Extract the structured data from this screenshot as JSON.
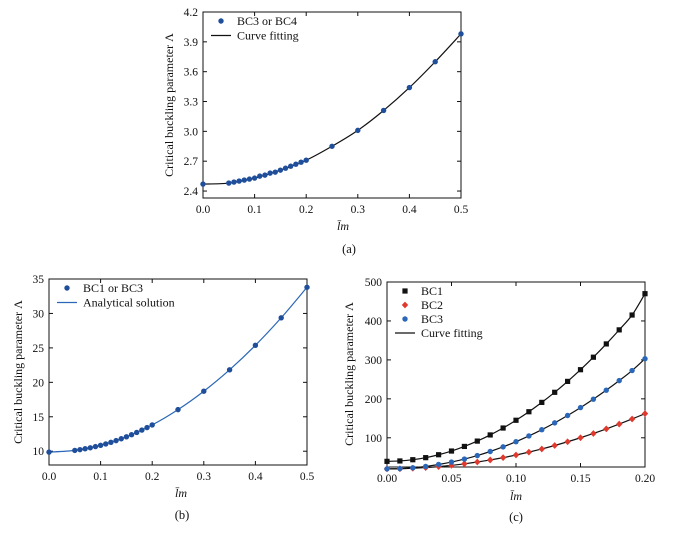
{
  "chart_data": [
    {
      "id": "a",
      "type": "scatter",
      "caption": "(a)",
      "xlabel": "l̄m",
      "ylabel": "Critical buckling parameter Λ",
      "xlim": [
        0.0,
        0.5
      ],
      "ylim": [
        2.33,
        4.2
      ],
      "xticks": [
        0.0,
        0.1,
        0.2,
        0.3,
        0.4,
        0.5
      ],
      "yticks": [
        2.4,
        2.7,
        3.0,
        3.3,
        3.6,
        3.9,
        4.2
      ],
      "tick_decimals_x": 1,
      "tick_decimals_y": 1,
      "legend": {
        "position": "top-left",
        "entries": [
          "BC3 or BC4",
          "Curve fitting"
        ]
      },
      "series": [
        {
          "name": "BC3 or BC4",
          "marker": "circle",
          "color": "#1f4e9a",
          "x": [
            0,
            0.05,
            0.06,
            0.07,
            0.08,
            0.09,
            0.1,
            0.11,
            0.12,
            0.13,
            0.14,
            0.15,
            0.16,
            0.17,
            0.18,
            0.19,
            0.2,
            0.25,
            0.3,
            0.35,
            0.4,
            0.45,
            0.5
          ],
          "y": [
            2.47,
            2.48,
            2.49,
            2.5,
            2.51,
            2.52,
            2.53,
            2.55,
            2.56,
            2.58,
            2.59,
            2.61,
            2.63,
            2.65,
            2.67,
            2.69,
            2.71,
            2.85,
            3.01,
            3.21,
            3.44,
            3.7,
            3.98
          ]
        },
        {
          "name": "Curve fitting",
          "kind": "line",
          "color": "#111111",
          "x": [
            0,
            0.05,
            0.1,
            0.15,
            0.2,
            0.25,
            0.3,
            0.35,
            0.4,
            0.45,
            0.5
          ],
          "y": [
            2.47,
            2.48,
            2.53,
            2.61,
            2.71,
            2.85,
            3.01,
            3.21,
            3.44,
            3.7,
            3.98
          ]
        }
      ]
    },
    {
      "id": "b",
      "type": "scatter",
      "caption": "(b)",
      "xlabel": "l̄m",
      "ylabel": "Critical buckling parameter Λ",
      "xlim": [
        0.0,
        0.5
      ],
      "ylim": [
        8,
        35
      ],
      "xticks": [
        0.0,
        0.1,
        0.2,
        0.3,
        0.4,
        0.5
      ],
      "yticks": [
        10,
        15,
        20,
        25,
        30,
        35
      ],
      "tick_decimals_x": 1,
      "tick_decimals_y": 0,
      "legend": {
        "position": "top-left",
        "entries": [
          "BC1 or BC3",
          "Analytical solution"
        ]
      },
      "series": [
        {
          "name": "BC1 or BC3",
          "marker": "circle",
          "color": "#1f4e9a",
          "x": [
            0,
            0.05,
            0.06,
            0.07,
            0.08,
            0.09,
            0.1,
            0.11,
            0.12,
            0.13,
            0.14,
            0.15,
            0.16,
            0.17,
            0.18,
            0.19,
            0.2,
            0.25,
            0.3,
            0.35,
            0.4,
            0.45,
            0.5
          ],
          "y": [
            9.87,
            10.12,
            10.23,
            10.36,
            10.5,
            10.67,
            10.86,
            11.06,
            11.29,
            11.54,
            11.81,
            12.09,
            12.4,
            12.73,
            13.07,
            13.43,
            13.82,
            16.04,
            18.71,
            21.82,
            25.37,
            29.37,
            33.8
          ]
        },
        {
          "name": "Analytical solution",
          "kind": "line",
          "color": "#2b67b8",
          "x": [
            0,
            0.05,
            0.1,
            0.15,
            0.2,
            0.25,
            0.3,
            0.35,
            0.4,
            0.45,
            0.5
          ],
          "y": [
            9.87,
            10.12,
            10.86,
            12.09,
            13.82,
            16.04,
            18.71,
            21.82,
            25.37,
            29.37,
            33.8
          ]
        }
      ]
    },
    {
      "id": "c",
      "type": "scatter",
      "caption": "(c)",
      "xlabel": "l̄m",
      "ylabel": "Critical buckling parameter Λ",
      "xlim": [
        0.0,
        0.2
      ],
      "ylim": [
        25,
        500
      ],
      "xticks": [
        0.0,
        0.05,
        0.1,
        0.15,
        0.2
      ],
      "yticks": [
        100,
        200,
        300,
        400,
        500
      ],
      "tick_decimals_x": 2,
      "tick_decimals_y": 0,
      "legend": {
        "position": "top-left",
        "entries": [
          "BC1",
          "BC2",
          "BC3",
          "Curve fitting"
        ]
      },
      "series": [
        {
          "name": "BC1",
          "marker": "square",
          "color": "#111111",
          "x": [
            0.0,
            0.01,
            0.02,
            0.03,
            0.04,
            0.05,
            0.06,
            0.07,
            0.08,
            0.09,
            0.1,
            0.11,
            0.12,
            0.13,
            0.14,
            0.15,
            0.16,
            0.17,
            0.18,
            0.19,
            0.2
          ],
          "y": [
            39.5,
            40.5,
            43.7,
            49.0,
            56.5,
            66.0,
            77.8,
            91.5,
            107.3,
            125.1,
            145.0,
            166.9,
            190.9,
            216.8,
            244.8,
            274.8,
            306.9,
            341.0,
            377.1,
            415.2,
            470
          ]
        },
        {
          "name": "BC2",
          "marker": "diamond",
          "color": "#e03a2f",
          "x": [
            0.0,
            0.01,
            0.02,
            0.03,
            0.04,
            0.05,
            0.06,
            0.07,
            0.08,
            0.09,
            0.1,
            0.11,
            0.12,
            0.13,
            0.14,
            0.15,
            0.16,
            0.17,
            0.18,
            0.19,
            0.2
          ],
          "y": [
            20.2,
            20.6,
            21.7,
            23.5,
            26.0,
            29.2,
            33.2,
            37.8,
            43.1,
            49.1,
            55.8,
            63.2,
            71.3,
            80.2,
            89.8,
            100.1,
            111.1,
            122.8,
            135.2,
            148.3,
            162
          ]
        },
        {
          "name": "BC3",
          "marker": "circle",
          "color": "#2b67b8",
          "x": [
            0.0,
            0.01,
            0.02,
            0.03,
            0.04,
            0.05,
            0.06,
            0.07,
            0.08,
            0.09,
            0.1,
            0.11,
            0.12,
            0.13,
            0.14,
            0.15,
            0.16,
            0.17,
            0.18,
            0.19,
            0.2
          ],
          "y": [
            20.2,
            20.9,
            23.0,
            26.5,
            31.4,
            37.6,
            45.3,
            54.4,
            64.8,
            76.7,
            90.0,
            104.7,
            120.8,
            138.3,
            157.2,
            177.5,
            199.2,
            222.3,
            246.8,
            272.7,
            303
          ]
        },
        {
          "name": "Curve fitting",
          "kind": "line",
          "color": "#111111",
          "fits": [
            "BC1",
            "BC2",
            "BC3"
          ]
        }
      ]
    }
  ]
}
